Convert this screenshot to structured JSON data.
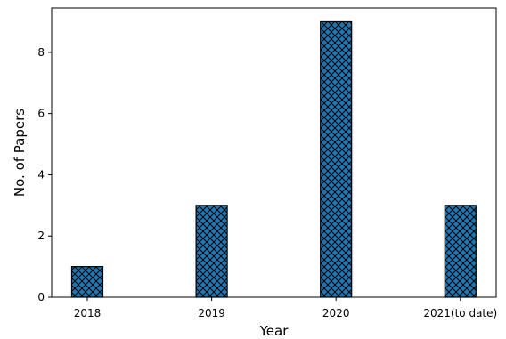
{
  "chart_data": {
    "type": "bar",
    "title": "",
    "xlabel": "Year",
    "ylabel": "No. of Papers",
    "categories": [
      "2018",
      "2019",
      "2020",
      "2021(to date)"
    ],
    "values": [
      1,
      3,
      9,
      3
    ],
    "ylim": [
      0,
      9.45
    ],
    "yticks": [
      "0",
      "2",
      "4",
      "6",
      "8"
    ],
    "grid": false,
    "legend": "none",
    "bar_color": "#1f77b4",
    "hatch": "cross-hatch (xx)",
    "edge_color": "#000000"
  }
}
